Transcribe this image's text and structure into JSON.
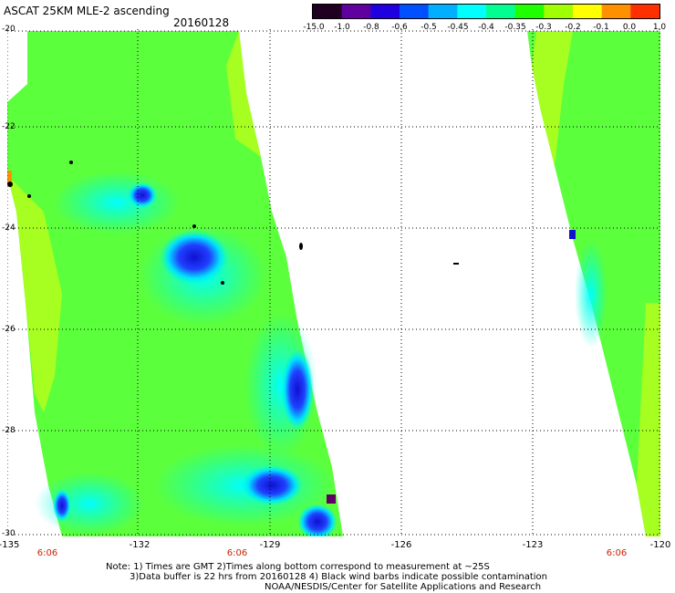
{
  "title": "ASCAT 25KM MLE-2 ascending",
  "date": "20160128",
  "colorbar": {
    "labels": [
      "-15.0",
      "-1.0",
      "-0.8",
      "-0.6",
      "-0.5",
      "-0.45",
      "-0.4",
      "-0.35",
      "-0.3",
      "-0.2",
      "-0.1",
      "0.0",
      "1.0"
    ],
    "colors": [
      "#200020",
      "#6000a0",
      "#2000e0",
      "#0050ff",
      "#00b0ff",
      "#00ffff",
      "#00ff90",
      "#20ff00",
      "#a0ff00",
      "#ffff00",
      "#ff9000",
      "#ff3000"
    ]
  },
  "y_axis": {
    "labels": [
      "-20",
      "-22",
      "-24",
      "-26",
      "-28",
      "-30"
    ]
  },
  "x_axis": {
    "labels": [
      "-135",
      "-132",
      "-129",
      "-126",
      "-123",
      "-120"
    ]
  },
  "time_labels": [
    "6:06",
    "6:06",
    "6:06"
  ],
  "notes": [
    "Note: 1) Times are GMT 2)Times along bottom correspond to measurement at ~25S",
    "3)Data buffer is 22 hrs from 20160128 4) Black wind barbs indicate possible contamination",
    "NOAA/NESDIS/Center for Satellite Applications and Research"
  ]
}
